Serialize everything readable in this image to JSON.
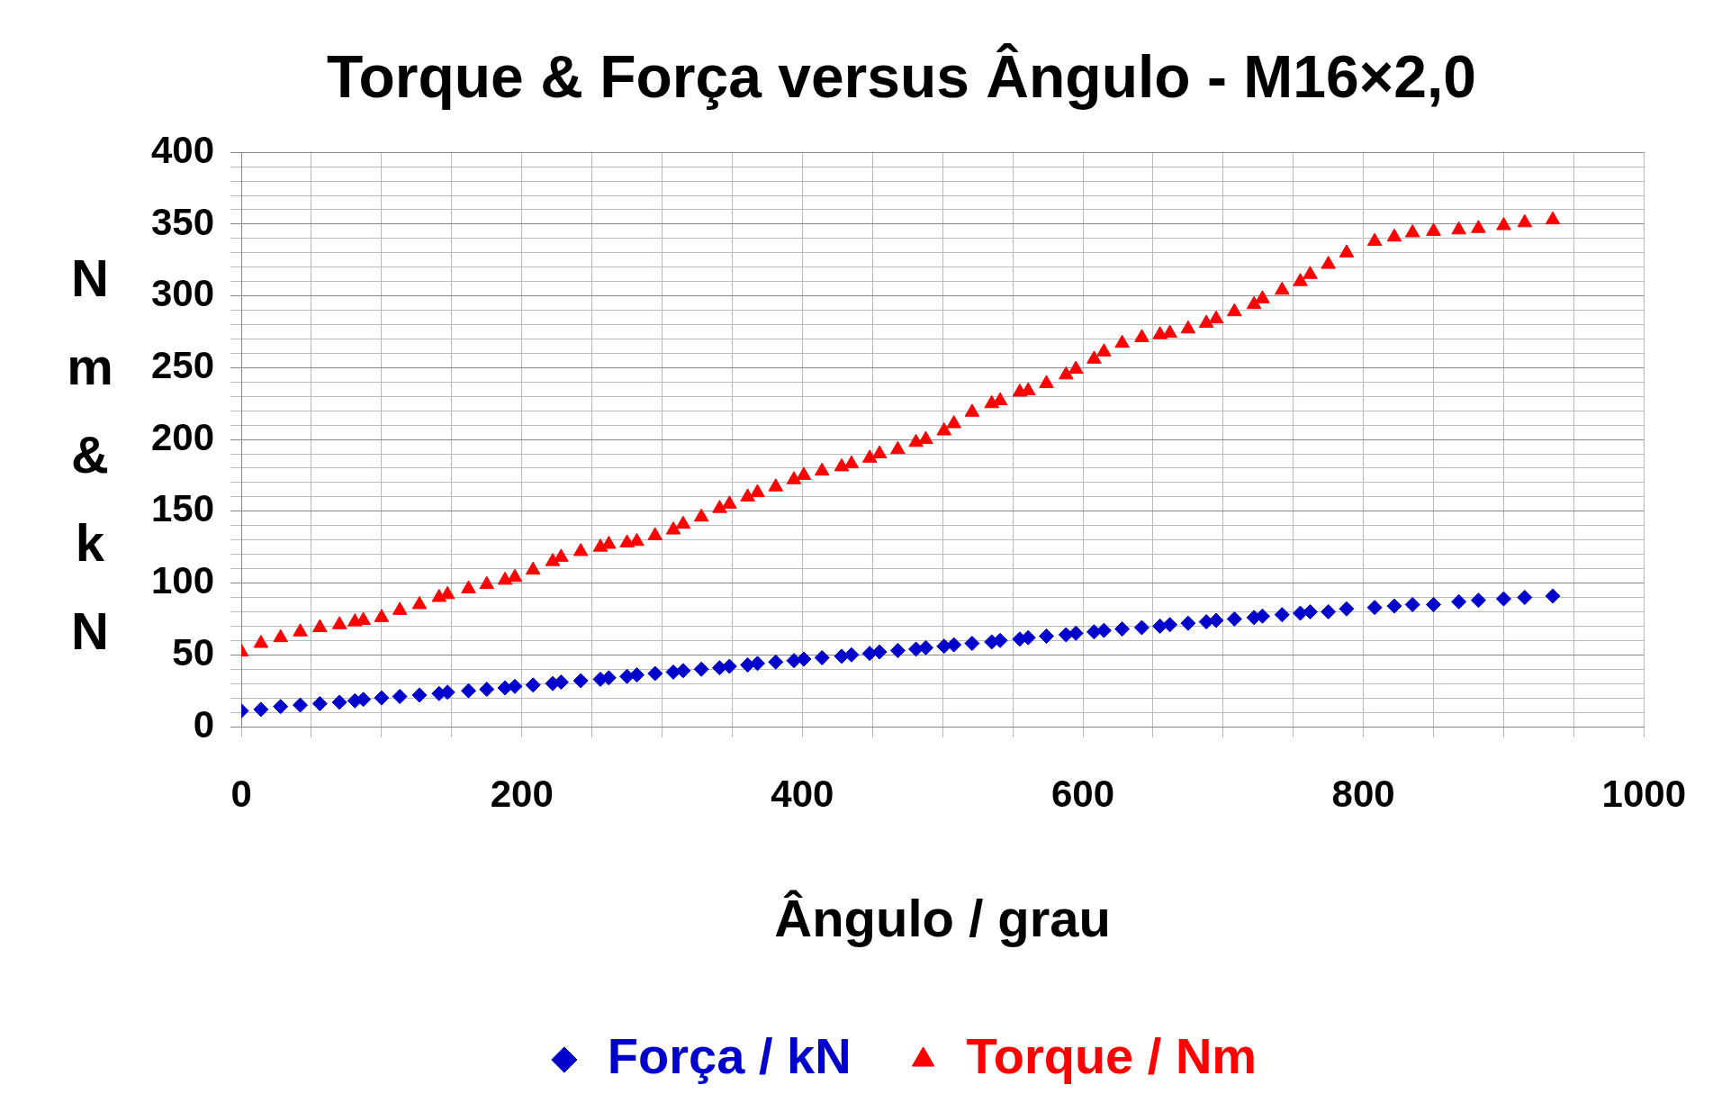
{
  "chart_data": {
    "type": "scatter",
    "title": "Torque & Força versus Ângulo - M16×2,0",
    "xlabel": "Ângulo / grau",
    "ylabel": "Nm & kN",
    "legend": "bottom",
    "grid": true,
    "x": [
      0,
      14,
      28,
      42,
      56,
      70,
      81,
      87,
      100,
      113,
      127,
      141,
      147,
      162,
      175,
      188,
      195,
      208,
      222,
      228,
      242,
      256,
      262,
      275,
      282,
      295,
      308,
      315,
      328,
      341,
      348,
      361,
      368,
      381,
      394,
      401,
      414,
      428,
      435,
      448,
      455,
      468,
      481,
      488,
      501,
      508,
      521,
      535,
      541,
      555,
      561,
      574,
      588,
      595,
      608,
      615,
      628,
      642,
      655,
      662,
      675,
      688,
      695,
      708,
      722,
      728,
      742,
      755,
      762,
      775,
      788,
      808,
      822,
      835,
      850,
      868,
      882,
      900,
      915,
      935
    ],
    "series": [
      {
        "name": "Força / kN",
        "color": "#0000cc",
        "marker": "diamond",
        "values": [
          11,
          12,
          14,
          15,
          16,
          17,
          18,
          19,
          20,
          21,
          22,
          23,
          24,
          25,
          26,
          27,
          28,
          29,
          30,
          31,
          32,
          33,
          34,
          35,
          36,
          37,
          38,
          39,
          40,
          41,
          42,
          43,
          44,
          45,
          46,
          47,
          48,
          49,
          50,
          51,
          52,
          53,
          54,
          55,
          56,
          57,
          58,
          59,
          60,
          61,
          62,
          63,
          64,
          65,
          66,
          67,
          68,
          69,
          70,
          71,
          72,
          73,
          74,
          75,
          76,
          77,
          78,
          79,
          80,
          80,
          82,
          83,
          84,
          85,
          85,
          87,
          88,
          89,
          90,
          91
        ]
      },
      {
        "name": "Torque / Nm",
        "color": "#ff0000",
        "marker": "triangle",
        "values": [
          52,
          58,
          62,
          66,
          69,
          71,
          73,
          74,
          76,
          81,
          85,
          90,
          92,
          96,
          99,
          102,
          104,
          109,
          115,
          118,
          122,
          125,
          127,
          128,
          129,
          133,
          137,
          141,
          146,
          152,
          155,
          160,
          163,
          167,
          172,
          175,
          178,
          181,
          183,
          187,
          190,
          193,
          198,
          200,
          206,
          211,
          219,
          225,
          227,
          233,
          234,
          239,
          245,
          249,
          256,
          261,
          267,
          271,
          273,
          274,
          277,
          281,
          284,
          289,
          294,
          298,
          304,
          310,
          315,
          322,
          330,
          338,
          341,
          344,
          345,
          346,
          347,
          349,
          351,
          353
        ]
      }
    ],
    "xlim": [
      0,
      1000
    ],
    "xticks": [
      0,
      {
        "value": 50,
        "label": null
      },
      {
        "value": 100,
        "label": null
      },
      {
        "value": 150,
        "label": null
      },
      200,
      {
        "value": 250,
        "label": null
      },
      {
        "value": 300,
        "label": null
      },
      {
        "value": 350,
        "label": null
      },
      400,
      {
        "value": 450,
        "label": null
      },
      {
        "value": 500,
        "label": null
      },
      {
        "value": 550,
        "label": null
      },
      600,
      {
        "value": 650,
        "label": null
      },
      {
        "value": 700,
        "label": null
      },
      {
        "value": 750,
        "label": null
      },
      800,
      {
        "value": 850,
        "label": null
      },
      {
        "value": 900,
        "label": null
      },
      {
        "value": 950,
        "label": null
      },
      1000
    ],
    "ylim": [
      0,
      400
    ],
    "yticks": [
      0,
      {
        "value": 10,
        "label": null
      },
      {
        "value": 20,
        "label": null
      },
      {
        "value": 30,
        "label": null
      },
      {
        "value": 40,
        "label": null
      },
      50,
      {
        "value": 60,
        "label": null
      },
      {
        "value": 70,
        "label": null
      },
      {
        "value": 80,
        "label": null
      },
      {
        "value": 90,
        "label": null
      },
      100,
      {
        "value": 110,
        "label": null
      },
      {
        "value": 120,
        "label": null
      },
      {
        "value": 130,
        "label": null
      },
      {
        "value": 140,
        "label": null
      },
      150,
      {
        "value": 160,
        "label": null
      },
      {
        "value": 170,
        "label": null
      },
      {
        "value": 180,
        "label": null
      },
      {
        "value": 190,
        "label": null
      },
      200,
      {
        "value": 210,
        "label": null
      },
      {
        "value": 220,
        "label": null
      },
      {
        "value": 230,
        "label": null
      },
      {
        "value": 240,
        "label": null
      },
      250,
      {
        "value": 260,
        "label": null
      },
      {
        "value": 270,
        "label": null
      },
      {
        "value": 280,
        "label": null
      },
      {
        "value": 290,
        "label": null
      },
      300,
      {
        "value": 310,
        "label": null
      },
      {
        "value": 320,
        "label": null
      },
      {
        "value": 330,
        "label": null
      },
      {
        "value": 340,
        "label": null
      },
      350,
      {
        "value": 360,
        "label": null
      },
      {
        "value": 370,
        "label": null
      },
      {
        "value": 380,
        "label": null
      },
      {
        "value": 390,
        "label": null
      },
      400
    ]
  }
}
